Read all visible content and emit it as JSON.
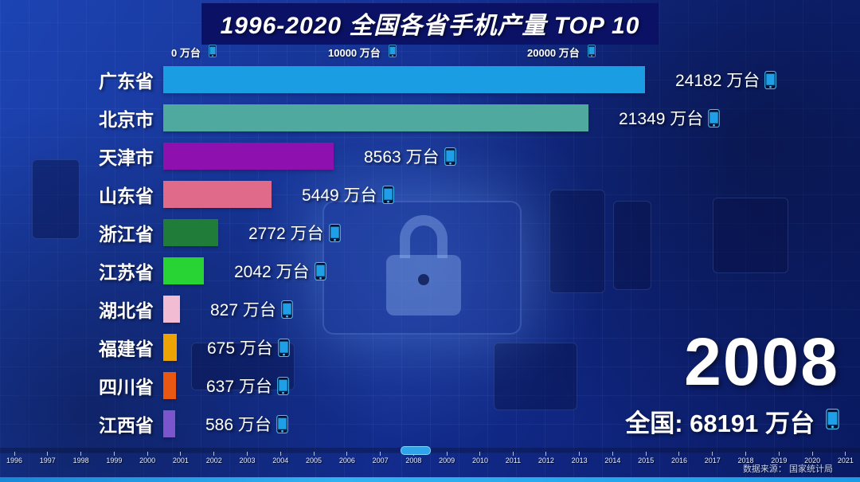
{
  "title": "1996-2020 全国各省手机产量 TOP 10",
  "unit": "万台",
  "colors": {
    "accent_cyan": "#2fa3ec",
    "title_background": "#0b1266",
    "background_navy": "#122c8e",
    "text": "#ffffff"
  },
  "icons": {
    "value_suffix_icon": "smartphone-icon"
  },
  "chart_data": {
    "type": "bar",
    "orientation": "horizontal",
    "title": "1996-2020 全国各省手机产量 TOP 10",
    "xlabel": "",
    "ylabel": "",
    "unit": "万台",
    "xlim": [
      0,
      25000
    ],
    "x_ticks": [
      0,
      10000,
      20000
    ],
    "x_tick_labels": [
      "0 万台",
      "10000 万台",
      "20000 万台"
    ],
    "categories": [
      "广东省",
      "北京市",
      "天津市",
      "山东省",
      "浙江省",
      "江苏省",
      "湖北省",
      "福建省",
      "四川省",
      "江西省"
    ],
    "values": [
      24182,
      21349,
      8563,
      5449,
      2772,
      2042,
      827,
      675,
      637,
      586
    ],
    "bar_colors": [
      "#1b9de4",
      "#4fa99e",
      "#8e10ae",
      "#e06a8a",
      "#1f7c39",
      "#28d334",
      "#f2bdd3",
      "#eda303",
      "#e95812",
      "#7b55cc"
    ],
    "year": "2008",
    "national_total": 68191
  },
  "footer": {
    "year_display": "2008",
    "total_text": "全国: 68191 万台",
    "source": "数据来源：  国家统计局",
    "timeline_years": [
      "1996",
      "1997",
      "1998",
      "1999",
      "2000",
      "2001",
      "2002",
      "2003",
      "2004",
      "2005",
      "2006",
      "2007",
      "2008",
      "2009",
      "2010",
      "2011",
      "2012",
      "2013",
      "2014",
      "2015",
      "2016",
      "2017",
      "2018",
      "2019",
      "2020",
      "2021"
    ]
  }
}
